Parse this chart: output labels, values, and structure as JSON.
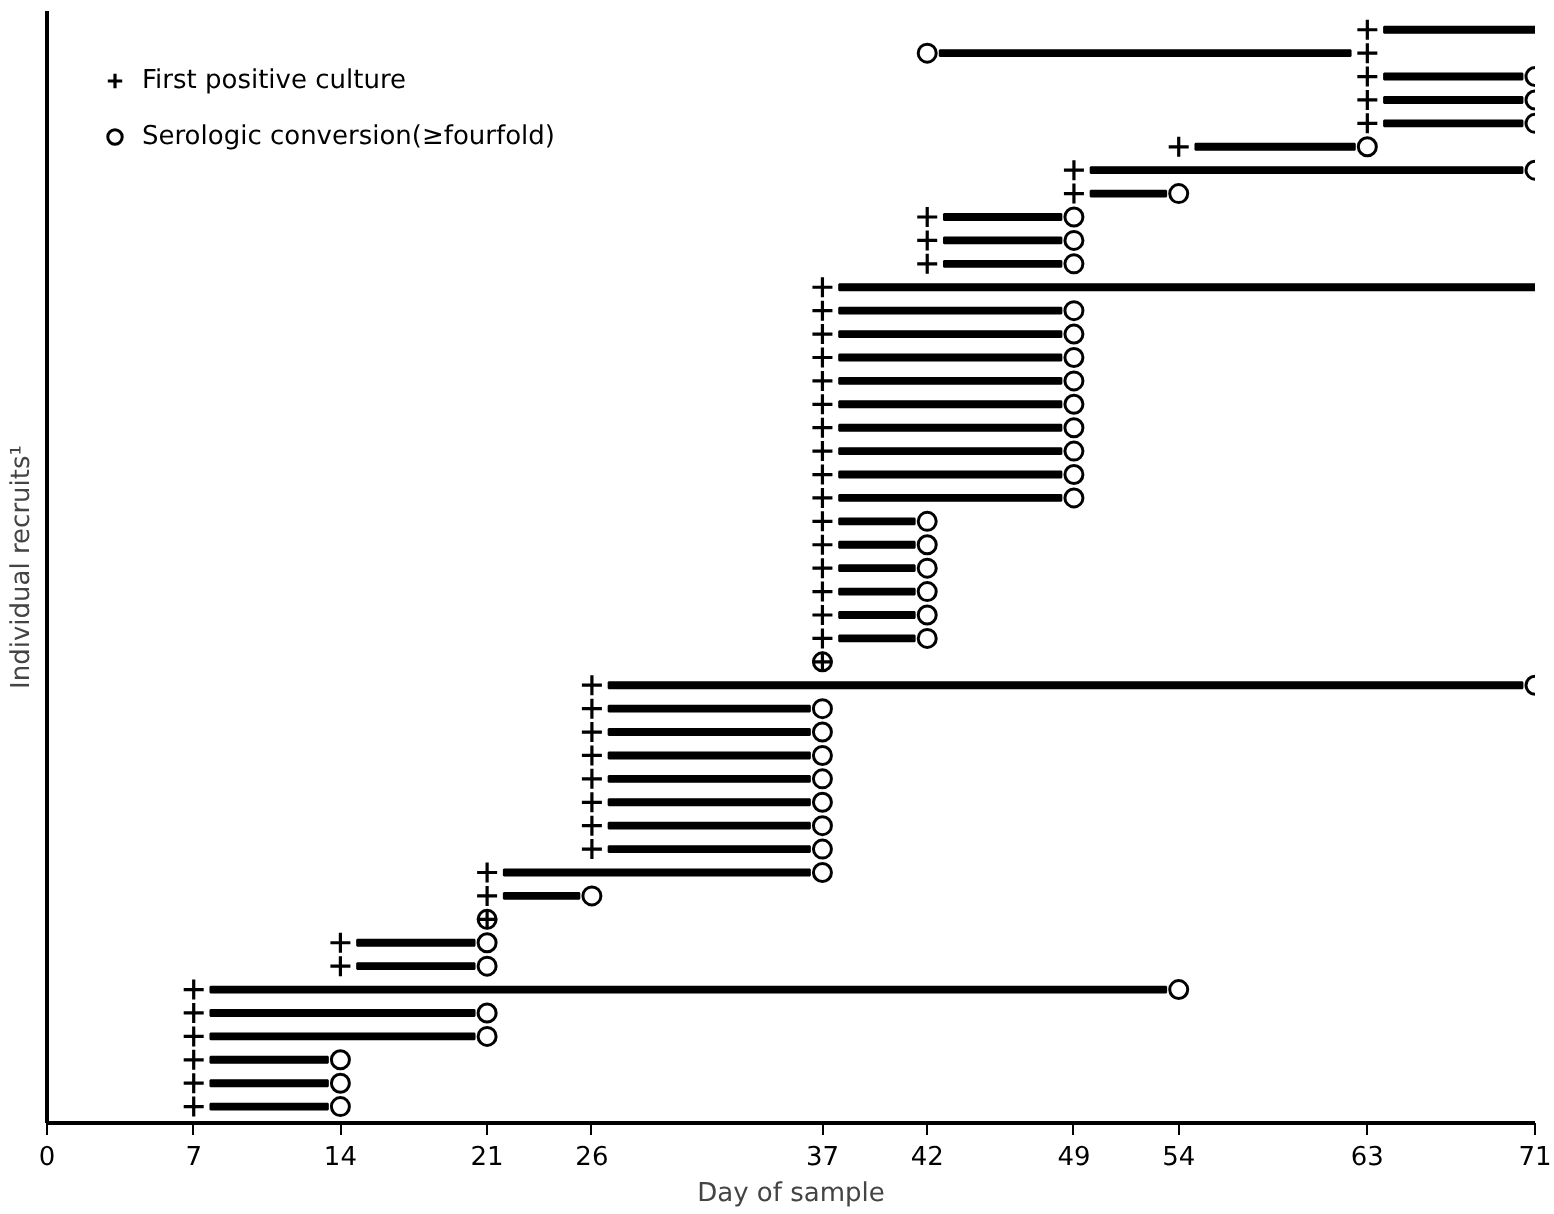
{
  "chart_data": {
    "type": "bar",
    "orientation": "horizontal",
    "xlabel": "Day of sample",
    "ylabel": "Individual recruits¹",
    "categories": [
      null,
      null,
      null,
      null,
      null,
      null,
      null,
      null,
      null,
      null,
      null,
      null,
      null,
      null,
      null,
      null,
      null,
      null,
      null,
      null,
      null,
      null,
      null,
      null,
      null,
      null,
      null,
      null,
      null,
      null,
      null,
      null,
      null,
      null,
      null,
      null,
      null,
      null,
      null,
      null,
      null,
      null,
      null,
      null,
      null,
      null,
      null
    ],
    "xlim": [
      0,
      71
    ],
    "xticks": [
      0,
      7,
      14,
      21,
      26,
      37,
      42,
      49,
      54,
      63,
      71
    ],
    "tick_labels": "x",
    "grid": false,
    "legend": "top left",
    "series": [
      {
        "color": "#000000",
        "base": [
          63.8,
          42.6,
          63.8,
          63.8,
          63.8,
          54.8,
          49.8,
          49.8,
          42.8,
          42.8,
          42.8,
          37.8,
          37.8,
          37.8,
          37.8,
          37.8,
          37.8,
          37.8,
          37.8,
          37.8,
          37.8,
          37.8,
          37.8,
          37.8,
          37.8,
          37.8,
          37.8,
          null,
          26.8,
          26.8,
          26.8,
          26.8,
          26.8,
          26.8,
          26.8,
          26.8,
          21.8,
          21.8,
          null,
          14.8,
          14.8,
          7.8,
          7.8,
          7.8,
          7.8,
          7.8,
          7.8
        ],
        "values": [
          7.2,
          19.6,
          6.6,
          6.6,
          6.6,
          7.6,
          20.6,
          3.6,
          5.6,
          5.6,
          5.6,
          33.2,
          10.6,
          10.6,
          10.6,
          10.6,
          10.6,
          10.6,
          10.6,
          10.6,
          10.6,
          3.6,
          3.6,
          3.6,
          3.6,
          3.6,
          3.6,
          null,
          43.6,
          9.6,
          9.6,
          9.6,
          9.6,
          9.6,
          9.6,
          9.6,
          14.6,
          3.6,
          null,
          5.6,
          5.6,
          45.6,
          12.6,
          12.6,
          5.6,
          5.6,
          5.6
        ]
      },
      {
        "type": "scatter",
        "name": "First positive culture",
        "marker": "cross",
        "color": "#000000",
        "values": [
          63,
          63,
          63,
          63,
          63,
          54,
          49,
          49,
          42,
          42,
          42,
          37,
          37,
          37,
          37,
          37,
          37,
          37,
          37,
          37,
          37,
          37,
          37,
          37,
          37,
          37,
          37,
          37,
          26,
          26,
          26,
          26,
          26,
          26,
          26,
          26,
          21,
          21,
          21,
          14,
          14,
          7,
          7,
          7,
          7,
          7,
          7
        ]
      },
      {
        "type": "scatter",
        "name": "Serologic conversion(≥fourfold)",
        "marker": "circle",
        "color": "#000000",
        "values": [
          null,
          42,
          71,
          71,
          71,
          63,
          71,
          54,
          49,
          49,
          49,
          null,
          49,
          49,
          49,
          49,
          49,
          49,
          49,
          49,
          49,
          42,
          42,
          42,
          42,
          42,
          42,
          37,
          71,
          37,
          37,
          37,
          37,
          37,
          37,
          37,
          37,
          26,
          21,
          21,
          21,
          54,
          21,
          21,
          14,
          14,
          14
        ]
      }
    ]
  }
}
